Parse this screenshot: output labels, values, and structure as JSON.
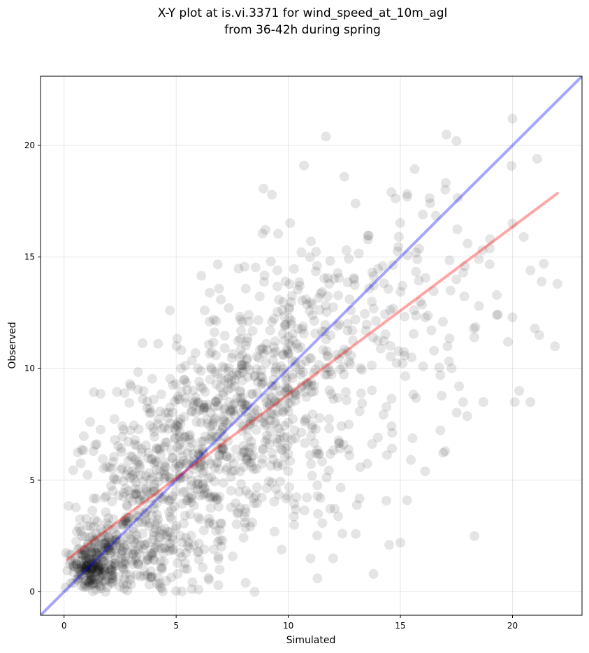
{
  "chart_data": {
    "type": "scatter",
    "title": [
      "X-Y plot at is.vi.3371 for wind_speed_at_10m_agl",
      "from 36-42h during spring"
    ],
    "xlabel": "Simulated",
    "ylabel": "Observed",
    "xlim": [
      -1.05,
      23.1
    ],
    "ylim": [
      -1.05,
      23.1
    ],
    "x_ticks": [
      0,
      5,
      10,
      15,
      20
    ],
    "y_ticks": [
      0,
      5,
      10,
      15,
      20
    ],
    "x_tick_labels": [
      "0",
      "5",
      "10",
      "15",
      "20"
    ],
    "y_tick_labels": [
      "0",
      "5",
      "10",
      "15",
      "20"
    ],
    "grid": true,
    "point_color": "#000000",
    "point_opacity": 0.1,
    "reference_lines": [
      {
        "kind": "identity",
        "color": "#0000ff",
        "opacity": 0.35,
        "points": [
          [
            -1.05,
            -1.05
          ],
          [
            23.1,
            23.1
          ]
        ]
      },
      {
        "kind": "fit",
        "color": "#ff0000",
        "opacity": 0.35,
        "points": [
          [
            0.15,
            1.45
          ],
          [
            22.0,
            17.85
          ]
        ]
      }
    ],
    "clusters": [
      {
        "cx": 1.3,
        "cy": 1.2,
        "sx": 0.55,
        "sy": 0.65,
        "n": 230
      },
      {
        "cx": 2.8,
        "cy": 1.8,
        "sx": 1.2,
        "sy": 1.2,
        "n": 170
      },
      {
        "cx": 4.5,
        "cy": 3.5,
        "sx": 1.5,
        "sy": 2.0,
        "n": 200
      },
      {
        "cx": 6.0,
        "cy": 6.5,
        "sx": 1.6,
        "sy": 1.9,
        "n": 280
      },
      {
        "cx": 8.5,
        "cy": 8.3,
        "sx": 1.8,
        "sy": 2.3,
        "n": 230
      },
      {
        "cx": 10.5,
        "cy": 10.8,
        "sx": 1.6,
        "sy": 2.3,
        "n": 170
      },
      {
        "cx": 11.5,
        "cy": 5.5,
        "sx": 1.8,
        "sy": 2.2,
        "n": 55
      },
      {
        "cx": 13.5,
        "cy": 12.0,
        "sx": 2.0,
        "sy": 2.8,
        "n": 95
      },
      {
        "cx": 16.5,
        "cy": 13.5,
        "sx": 2.3,
        "sy": 2.8,
        "n": 45
      },
      {
        "cx": 3.0,
        "cy": 6.2,
        "sx": 1.4,
        "sy": 1.6,
        "n": 70
      }
    ],
    "points": [
      [
        20.0,
        21.2
      ],
      [
        17.5,
        20.2
      ],
      [
        21.1,
        19.4
      ],
      [
        10.7,
        19.1
      ],
      [
        12.5,
        18.6
      ],
      [
        14.6,
        17.9
      ],
      [
        15.3,
        17.7
      ],
      [
        13.0,
        17.4
      ],
      [
        16.0,
        16.9
      ],
      [
        18.0,
        15.6
      ],
      [
        19.0,
        15.8
      ],
      [
        20.0,
        16.5
      ],
      [
        20.5,
        15.9
      ],
      [
        21.4,
        14.7
      ],
      [
        20.8,
        14.4
      ],
      [
        22.0,
        13.8
      ],
      [
        21.3,
        13.9
      ],
      [
        19.3,
        13.3
      ],
      [
        19.3,
        12.4
      ],
      [
        20.0,
        12.3
      ],
      [
        21.0,
        11.8
      ],
      [
        21.9,
        11.0
      ],
      [
        19.8,
        11.2
      ],
      [
        21.2,
        11.5
      ],
      [
        20.1,
        8.5
      ],
      [
        20.8,
        8.5
      ],
      [
        20.3,
        9.0
      ],
      [
        18.7,
        8.5
      ],
      [
        17.8,
        8.5
      ],
      [
        17.0,
        6.3
      ],
      [
        16.1,
        5.4
      ],
      [
        18.3,
        2.5
      ],
      [
        15.3,
        4.1
      ],
      [
        15.0,
        2.2
      ],
      [
        14.5,
        2.1
      ],
      [
        13.8,
        0.8
      ],
      [
        12.0,
        1.5
      ],
      [
        11.3,
        0.6
      ],
      [
        8.1,
        0.4
      ],
      [
        8.5,
        0.0
      ],
      [
        6.0,
        0.1
      ],
      [
        18.3,
        11.4
      ],
      [
        18.5,
        14.9
      ],
      [
        17.8,
        14.3
      ],
      [
        16.5,
        10.8
      ],
      [
        15.5,
        10.5
      ],
      [
        17.1,
        11.0
      ],
      [
        16.9,
        12.1
      ]
    ]
  }
}
